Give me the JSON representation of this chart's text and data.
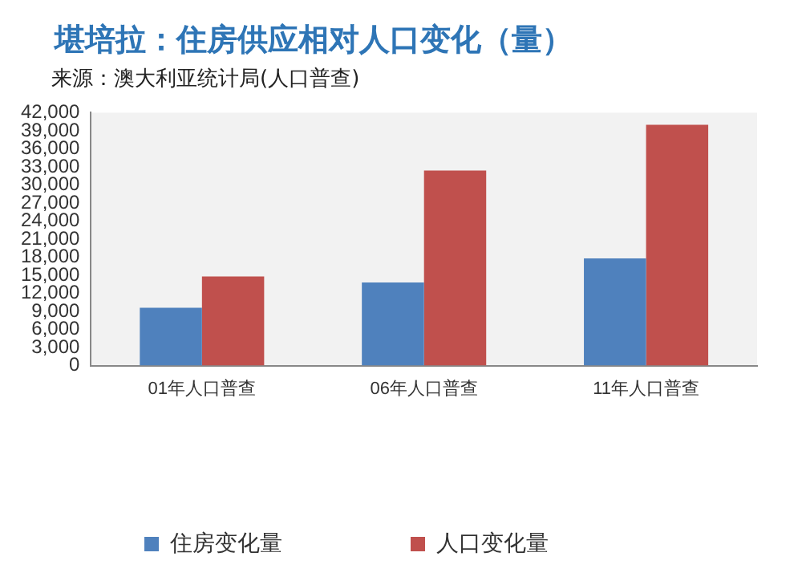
{
  "chart_data": {
    "type": "bar",
    "title": "堪培拉：住房供应相对人口变化（量）",
    "subtitle": "来源：澳大利亚统计局(人口普查)",
    "categories": [
      "01年人口普查",
      "06年人口普查",
      "11年人口普查"
    ],
    "series": [
      {
        "name": "住房变化量",
        "color": "#4f81bd",
        "values": [
          9600,
          13800,
          17800
        ]
      },
      {
        "name": "人口变化量",
        "color": "#c0504d",
        "values": [
          14800,
          32400,
          40000
        ]
      }
    ],
    "ylim": [
      0,
      42000
    ],
    "yticks": [
      {
        "value": 0,
        "label": "0"
      },
      {
        "value": 3000,
        "label": "3,000"
      },
      {
        "value": 6000,
        "label": "6,000"
      },
      {
        "value": 9000,
        "label": "9,000"
      },
      {
        "value": 12000,
        "label": "12,000"
      },
      {
        "value": 15000,
        "label": "15,000"
      },
      {
        "value": 18000,
        "label": "18,000"
      },
      {
        "value": 21000,
        "label": "21,000"
      },
      {
        "value": 24000,
        "label": "24,000"
      },
      {
        "value": 27000,
        "label": "27,000"
      },
      {
        "value": 30000,
        "label": "30,000"
      },
      {
        "value": 33000,
        "label": "33,000"
      },
      {
        "value": 36000,
        "label": "36,000"
      },
      {
        "value": 39000,
        "label": "39,000"
      },
      {
        "value": 42000,
        "label": "42,000"
      }
    ],
    "grid": false,
    "legend": "bottom"
  }
}
